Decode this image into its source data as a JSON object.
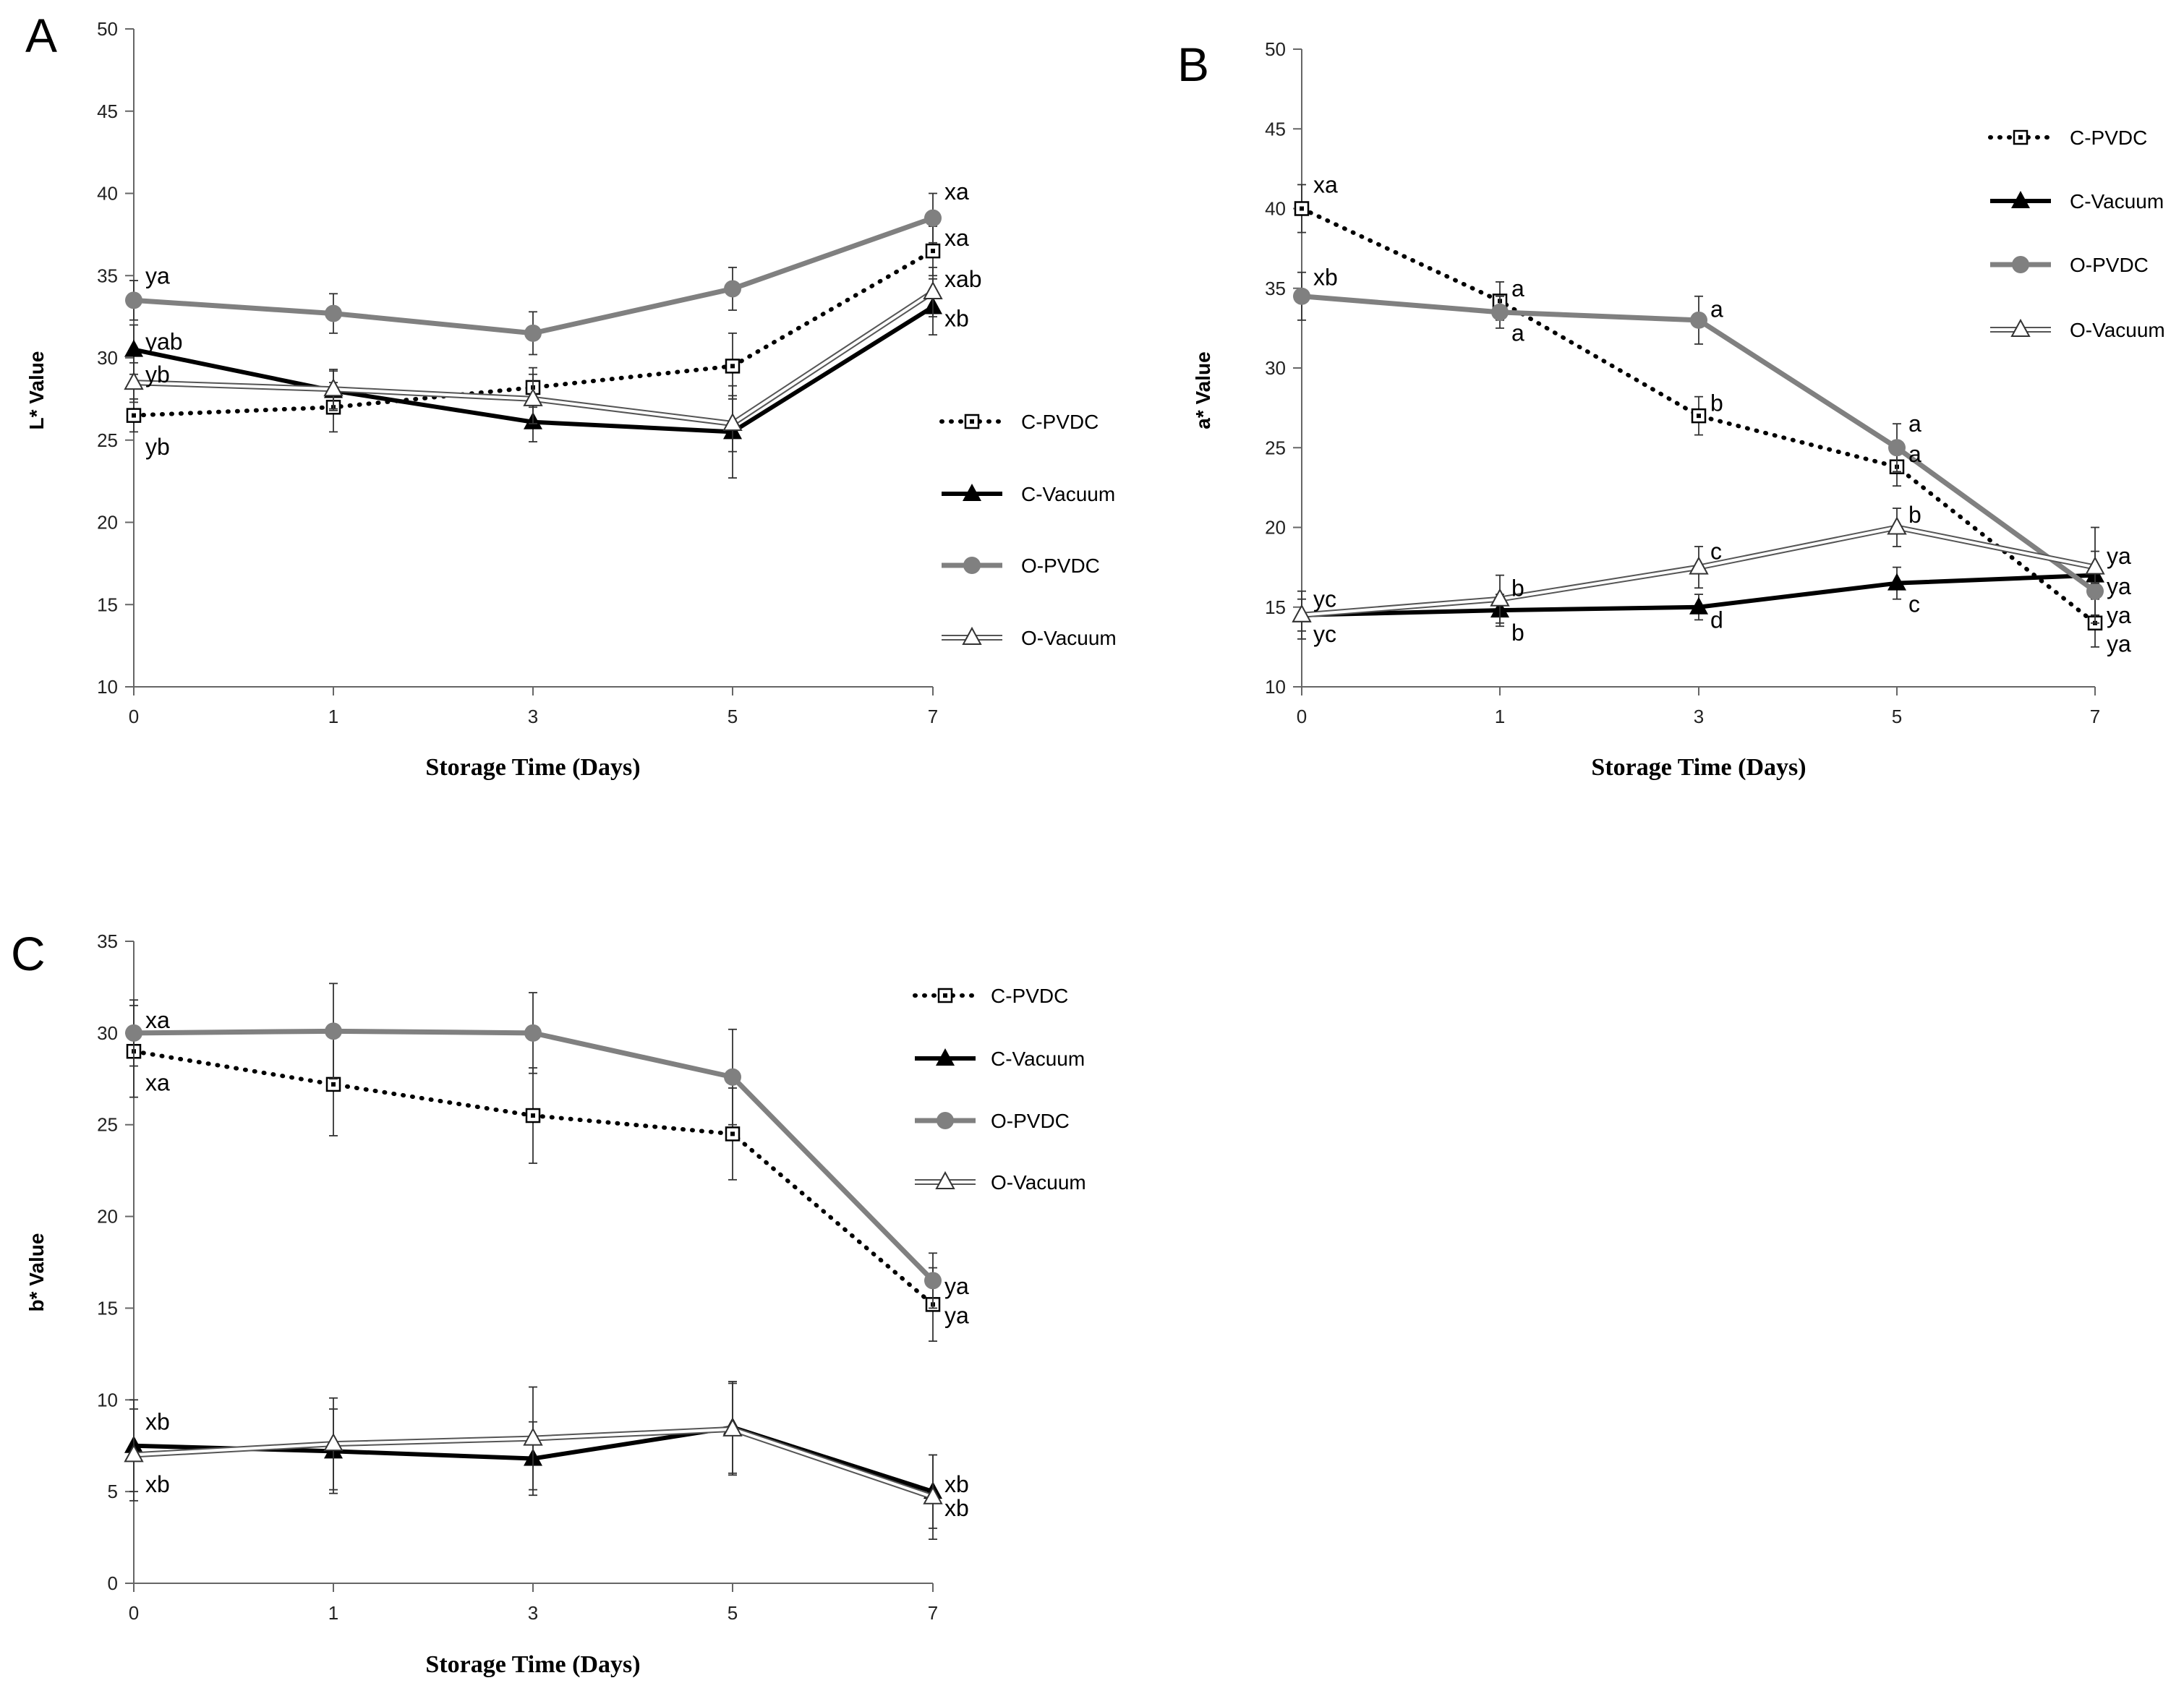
{
  "chart_data": [
    {
      "panel": "A",
      "type": "line",
      "ylabel": "L* Value",
      "xlabel": "Storage Time  (Days)",
      "ylim": [
        10,
        50
      ],
      "yticks": [
        "10",
        "15",
        "20",
        "25",
        "30",
        "35",
        "40",
        "45",
        "50"
      ],
      "categories": [
        "0",
        "1",
        "3",
        "5",
        "7"
      ],
      "series": [
        {
          "name": "C-PVDC",
          "style": "cpvdc",
          "values": [
            26.5,
            27.0,
            28.2,
            29.5,
            36.5
          ],
          "errors": [
            1.0,
            1.5,
            1.2,
            2.0,
            1.5
          ]
        },
        {
          "name": "C-Vacuum",
          "style": "cvac",
          "values": [
            30.5,
            28.0,
            26.1,
            25.5,
            33.1
          ],
          "errors": [
            1.5,
            1.2,
            1.2,
            2.8,
            1.7
          ]
        },
        {
          "name": "O-PVDC",
          "style": "opvdc",
          "values": [
            33.5,
            32.7,
            31.5,
            34.2,
            38.5
          ],
          "errors": [
            1.2,
            1.2,
            1.3,
            1.3,
            1.5
          ]
        },
        {
          "name": "O-Vacuum",
          "style": "ovac",
          "values": [
            28.5,
            28.1,
            27.5,
            26.0,
            34.0
          ],
          "errors": [
            1.2,
            1.2,
            1.5,
            1.7,
            1.5
          ]
        }
      ],
      "annotations": [
        {
          "text": "ya",
          "cat": 0,
          "y": 35.0
        },
        {
          "text": "yab",
          "cat": 0,
          "y": 31.0
        },
        {
          "text": "yb",
          "cat": 0,
          "y": 29.0
        },
        {
          "text": "yb",
          "cat": 0,
          "y": 24.6
        },
        {
          "text": "xa",
          "cat": 4,
          "y": 40.1
        },
        {
          "text": "xa",
          "cat": 4,
          "y": 37.3
        },
        {
          "text": "xab",
          "cat": 4,
          "y": 34.8
        },
        {
          "text": "xb",
          "cat": 4,
          "y": 32.4
        }
      ]
    },
    {
      "panel": "B",
      "type": "line",
      "ylabel": "a* Value",
      "xlabel": "Storage Time  (Days)",
      "ylim": [
        10,
        50
      ],
      "yticks": [
        "10",
        "15",
        "20",
        "25",
        "30",
        "35",
        "40",
        "45",
        "50"
      ],
      "categories": [
        "0",
        "1",
        "3",
        "5",
        "7"
      ],
      "series": [
        {
          "name": "C-PVDC",
          "style": "cpvdc",
          "values": [
            40.0,
            34.2,
            27.0,
            23.8,
            14.0
          ],
          "errors": [
            1.5,
            1.2,
            1.2,
            1.2,
            1.5
          ]
        },
        {
          "name": "C-Vacuum",
          "style": "cvac",
          "values": [
            14.5,
            14.8,
            15.0,
            16.5,
            17.0
          ],
          "errors": [
            1.5,
            1.0,
            0.8,
            1.0,
            3.0
          ]
        },
        {
          "name": "O-PVDC",
          "style": "opvdc",
          "values": [
            34.5,
            33.5,
            33.0,
            25.0,
            16.0
          ],
          "errors": [
            1.5,
            1.0,
            1.5,
            1.5,
            1.5
          ]
        },
        {
          "name": "O-Vacuum",
          "style": "ovac",
          "values": [
            14.5,
            15.5,
            17.5,
            20.0,
            17.5
          ],
          "errors": [
            1.0,
            1.5,
            1.3,
            1.2,
            1.0
          ]
        }
      ],
      "annotations": [
        {
          "text": "xa",
          "cat": 0,
          "y": 41.5
        },
        {
          "text": "xb",
          "cat": 0,
          "y": 35.7
        },
        {
          "text": "a",
          "cat": 1,
          "y": 35.0
        },
        {
          "text": "a",
          "cat": 1,
          "y": 32.2
        },
        {
          "text": "a",
          "cat": 2,
          "y": 33.7
        },
        {
          "text": "b",
          "cat": 2,
          "y": 27.8
        },
        {
          "text": "a",
          "cat": 3,
          "y": 26.5
        },
        {
          "text": "a",
          "cat": 3,
          "y": 24.6
        },
        {
          "text": "yc",
          "cat": 0,
          "y": 15.5
        },
        {
          "text": "yc",
          "cat": 0,
          "y": 13.3
        },
        {
          "text": "b",
          "cat": 1,
          "y": 16.2
        },
        {
          "text": "b",
          "cat": 1,
          "y": 13.4
        },
        {
          "text": "c",
          "cat": 2,
          "y": 18.5
        },
        {
          "text": "d",
          "cat": 2,
          "y": 14.2
        },
        {
          "text": "b",
          "cat": 3,
          "y": 20.8
        },
        {
          "text": "c",
          "cat": 3,
          "y": 15.2
        },
        {
          "text": "ya",
          "cat": 4,
          "y": 18.2
        },
        {
          "text": "ya",
          "cat": 4,
          "y": 16.3
        },
        {
          "text": "ya",
          "cat": 4,
          "y": 14.5
        },
        {
          "text": "ya",
          "cat": 4,
          "y": 12.7
        }
      ],
      "legend": [
        "C-PVDC",
        "C-Vacuum",
        "O-PVDC",
        "O-Vacuum"
      ]
    },
    {
      "panel": "C",
      "type": "line",
      "ylabel": "b* Value",
      "xlabel": "Storage Time  (Days)",
      "ylim": [
        0,
        35
      ],
      "yticks": [
        "0",
        "5",
        "10",
        "15",
        "20",
        "25",
        "30",
        "35"
      ],
      "categories": [
        "0",
        "1",
        "3",
        "5",
        "7"
      ],
      "series": [
        {
          "name": "C-PVDC",
          "style": "cpvdc",
          "values": [
            29.0,
            27.2,
            25.5,
            24.5,
            15.2
          ],
          "errors": [
            2.5,
            2.8,
            2.6,
            2.5,
            2.0
          ]
        },
        {
          "name": "C-Vacuum",
          "style": "cvac",
          "values": [
            7.5,
            7.2,
            6.8,
            8.5,
            5.0
          ],
          "errors": [
            2.5,
            2.3,
            2.0,
            2.5,
            2.0
          ]
        },
        {
          "name": "O-PVDC",
          "style": "opvdc",
          "values": [
            30.0,
            30.1,
            30.0,
            27.6,
            16.5
          ],
          "errors": [
            1.8,
            2.6,
            2.2,
            2.6,
            1.5
          ]
        },
        {
          "name": "O-Vacuum",
          "style": "ovac",
          "values": [
            7.0,
            7.6,
            7.9,
            8.4,
            4.7
          ],
          "errors": [
            2.5,
            2.5,
            2.8,
            2.5,
            2.3
          ]
        }
      ],
      "annotations": [
        {
          "text": "xa",
          "cat": 0,
          "y": 30.7
        },
        {
          "text": "xa",
          "cat": 0,
          "y": 27.3
        },
        {
          "text": "ya",
          "cat": 4,
          "y": 16.2
        },
        {
          "text": "ya",
          "cat": 4,
          "y": 14.6
        },
        {
          "text": "xb",
          "cat": 0,
          "y": 8.8
        },
        {
          "text": "xb",
          "cat": 0,
          "y": 5.4
        },
        {
          "text": "xb",
          "cat": 4,
          "y": 5.4
        },
        {
          "text": "xb",
          "cat": 4,
          "y": 4.1
        }
      ],
      "legend": [
        "C-PVDC",
        "C-Vacuum",
        "O-PVDC",
        "O-Vacuum"
      ]
    }
  ]
}
